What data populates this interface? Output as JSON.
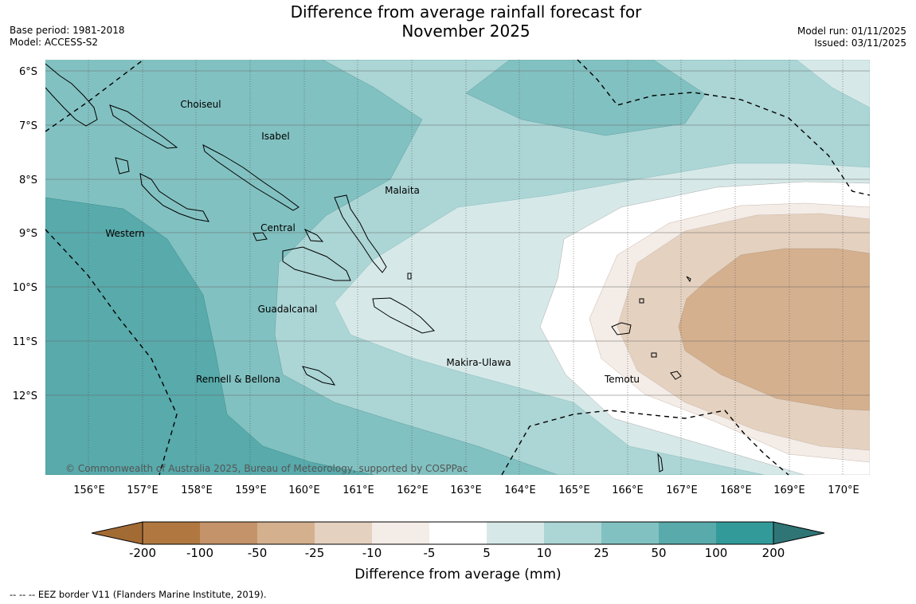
{
  "title_line1": "Difference from average rainfall forecast for",
  "title_line2": "November 2025",
  "base_period": "Base period: 1981-2018",
  "model": "Model: ACCESS-S2",
  "model_run": "Model run: 01/11/2025",
  "issued": "Issued: 03/11/2025",
  "lat_labels": [
    "6°S",
    "7°S",
    "8°S",
    "9°S",
    "10°S",
    "11°S",
    "12°S"
  ],
  "lon_labels": [
    "156°E",
    "157°E",
    "158°E",
    "159°E",
    "160°E",
    "161°E",
    "162°E",
    "163°E",
    "164°E",
    "165°E",
    "166°E",
    "167°E",
    "168°E",
    "169°E",
    "170°E"
  ],
  "regions": [
    "Choiseul",
    "Isabel",
    "Malaita",
    "Central",
    "Western",
    "Guadalcanal",
    "Makira-Ulawa",
    "Rennell & Bellona",
    "Temotu"
  ],
  "copyright": "© Commonwealth of Australia 2025, Bureau of Meteorology, supported by COSPPac",
  "legend": {
    "ticks": [
      "-200",
      "-100",
      "-50",
      "-25",
      "-10",
      "-5",
      "5",
      "10",
      "25",
      "50",
      "100",
      "200"
    ],
    "colors": [
      "#a36b34",
      "#b07840",
      "#c4936a",
      "#d4b08f",
      "#e4d1bf",
      "#f4ece7",
      "#ffffff",
      "#d6e9e8",
      "#acd5d5",
      "#82c1c1",
      "#58aaab",
      "#339a9a",
      "#2f7575"
    ],
    "label": "Difference from average (mm)"
  },
  "footnote": "-- -- -- EEZ border V11 (Flanders Marine Institute, 2019)."
}
